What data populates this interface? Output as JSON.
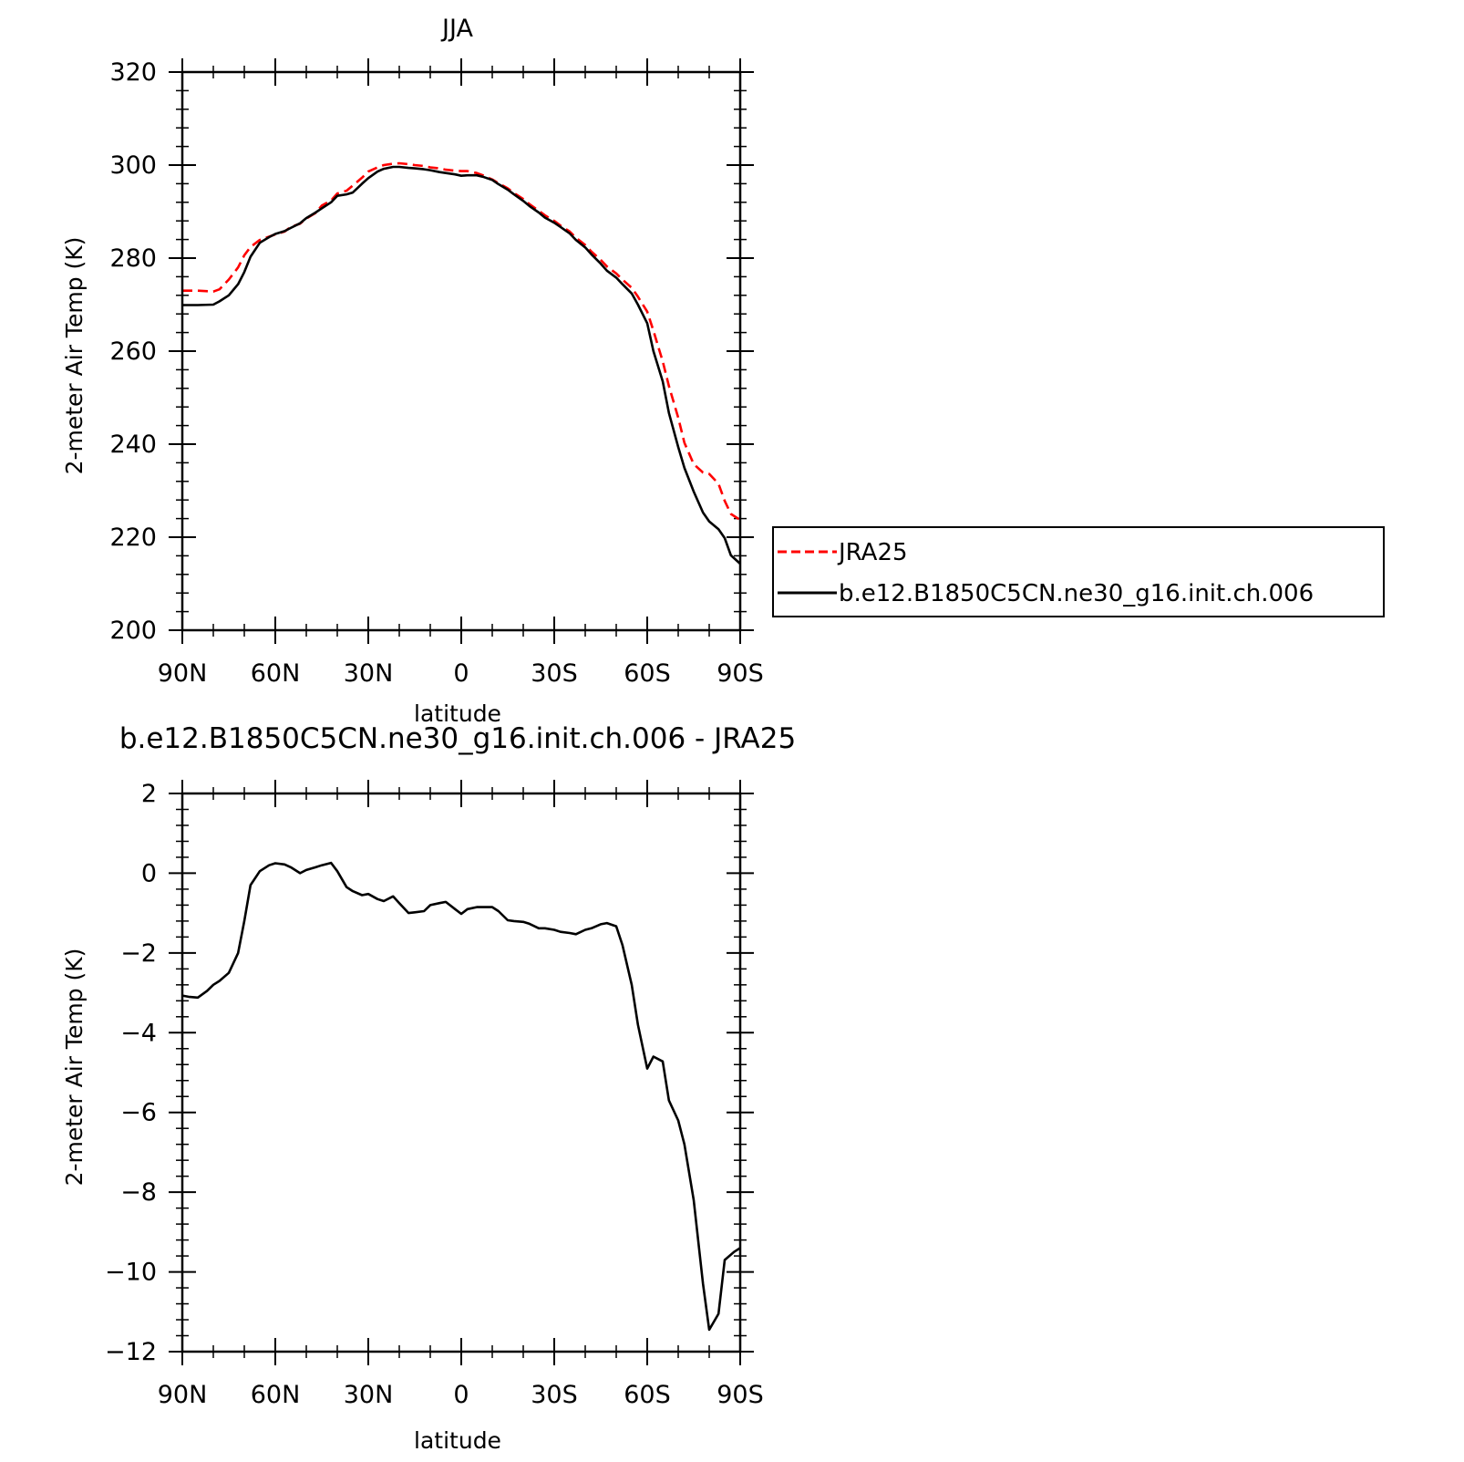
{
  "chart_data": [
    {
      "type": "line",
      "title": "JJA",
      "xlabel": "latitude",
      "ylabel": "2-meter Air Temp (K)",
      "xlim": [
        90,
        -90
      ],
      "ylim": [
        200,
        320
      ],
      "xticks": [
        90,
        60,
        30,
        0,
        -30,
        -60,
        -90
      ],
      "xtick_labels": [
        "90N",
        "60N",
        "30N",
        "0",
        "30S",
        "60S",
        "90S"
      ],
      "yticks": [
        200,
        220,
        240,
        260,
        280,
        300,
        320
      ],
      "ytick_labels": [
        "200",
        "220",
        "240",
        "260",
        "280",
        "300",
        "320"
      ],
      "legend_placement": "right",
      "series": [
        {
          "name": "JRA25",
          "color": "#ff0000",
          "dash": "dashed",
          "x": [
            90,
            85,
            80,
            78,
            75,
            72,
            70,
            68,
            65,
            62,
            60,
            57,
            55,
            52,
            50,
            47,
            45,
            42,
            40,
            37,
            35,
            32,
            30,
            27,
            25,
            22,
            20,
            17,
            15,
            12,
            10,
            7,
            5,
            2,
            0,
            -2,
            -5,
            -7,
            -10,
            -12,
            -15,
            -17,
            -20,
            -22,
            -25,
            -27,
            -30,
            -32,
            -35,
            -37,
            -40,
            -42,
            -45,
            -47,
            -50,
            -52,
            -55,
            -57,
            -60,
            -62,
            -65,
            -67,
            -70,
            -72,
            -75,
            -78,
            -80,
            -83,
            -85,
            -87,
            -90
          ],
          "y": [
            273,
            273,
            272.8,
            273.3,
            275.4,
            278,
            280.6,
            282.4,
            283.9,
            284.6,
            285.1,
            285.7,
            286.7,
            287.4,
            288.5,
            289.7,
            291.3,
            292.4,
            293.9,
            294.5,
            295.6,
            297.3,
            298.6,
            299.5,
            300,
            300.3,
            300.4,
            300.2,
            300,
            299.8,
            299.5,
            299.3,
            299,
            298.8,
            298.7,
            298.7,
            298.3,
            297.8,
            296.9,
            296.1,
            295,
            294,
            292.7,
            291.6,
            290.2,
            289.2,
            288,
            287,
            285.7,
            284.4,
            282.8,
            281.4,
            279.6,
            278.2,
            276.7,
            275.4,
            273.6,
            271.7,
            268.5,
            264.4,
            257.8,
            252.5,
            245.7,
            240.3,
            235.7,
            233.9,
            233.6,
            231.5,
            227.8,
            225,
            223.7
          ]
        },
        {
          "name": "b.e12.B1850C5CN.ne30_g16.init.ch.006",
          "color": "#000000",
          "dash": "solid",
          "x": [
            90,
            85,
            80,
            78,
            75,
            72,
            70,
            68,
            65,
            62,
            60,
            57,
            55,
            52,
            50,
            47,
            45,
            42,
            40,
            37,
            35,
            32,
            30,
            27,
            25,
            22,
            20,
            17,
            15,
            12,
            10,
            7,
            5,
            2,
            0,
            -2,
            -5,
            -7,
            -10,
            -12,
            -15,
            -17,
            -20,
            -22,
            -25,
            -27,
            -30,
            -32,
            -35,
            -37,
            -40,
            -42,
            -45,
            -47,
            -50,
            -52,
            -55,
            -57,
            -60,
            -62,
            -65,
            -67,
            -70,
            -72,
            -75,
            -78,
            -80,
            -83,
            -85,
            -87,
            -90
          ],
          "y": [
            269.9,
            269.9,
            270,
            270.7,
            272,
            274.4,
            277,
            280.3,
            283.3,
            284.5,
            285.2,
            285.8,
            286.5,
            287.5,
            288.6,
            289.8,
            290.7,
            292,
            293.4,
            293.7,
            294.1,
            296,
            297.2,
            298.6,
            299.2,
            299.6,
            299.6,
            299.4,
            299.3,
            299.1,
            298.9,
            298.5,
            298.3,
            298,
            297.7,
            297.8,
            297.8,
            297.5,
            296.8,
            295.9,
            294.7,
            293.7,
            292.3,
            291.2,
            289.8,
            288.7,
            287.6,
            286.7,
            285.3,
            283.9,
            282.3,
            280.8,
            278.8,
            277.3,
            275.8,
            274.4,
            272.4,
            270,
            266,
            260,
            253.5,
            246.7,
            239.4,
            234.9,
            229.8,
            225.3,
            223.4,
            221.7,
            219.8,
            216.1,
            214.3
          ]
        }
      ]
    },
    {
      "type": "line",
      "title": "b.e12.B1850C5CN.ne30_g16.init.ch.006 - JRA25",
      "xlabel": "latitude",
      "ylabel": "2-meter Air Temp (K)",
      "xlim": [
        90,
        -90
      ],
      "ylim": [
        -12,
        2
      ],
      "xticks": [
        90,
        60,
        30,
        0,
        -30,
        -60,
        -90
      ],
      "xtick_labels": [
        "90N",
        "60N",
        "30N",
        "0",
        "30S",
        "60S",
        "90S"
      ],
      "yticks": [
        -12,
        -10,
        -8,
        -6,
        -4,
        -2,
        0,
        2
      ],
      "ytick_labels": [
        "−12",
        "−10",
        "−8",
        "−6",
        "−4",
        "−2",
        "0",
        "2"
      ],
      "series": [
        {
          "color": "#000000",
          "dash": "solid",
          "x": [
            90,
            88,
            85,
            82,
            80,
            78,
            75,
            72,
            70,
            68,
            65,
            62,
            60,
            57,
            55,
            52,
            50,
            47,
            45,
            42,
            40,
            37,
            35,
            32,
            30,
            27,
            25,
            22,
            20,
            17,
            15,
            12,
            10,
            7,
            5,
            2,
            0,
            -2,
            -5,
            -7,
            -10,
            -12,
            -15,
            -17,
            -20,
            -22,
            -25,
            -27,
            -30,
            -32,
            -35,
            -37,
            -40,
            -42,
            -45,
            -47,
            -50,
            -52,
            -55,
            -57,
            -60,
            -62,
            -65,
            -67,
            -70,
            -72,
            -75,
            -78,
            -80,
            -83,
            -85,
            -88,
            -90
          ],
          "y": [
            -3.07,
            -3.1,
            -3.12,
            -2.95,
            -2.8,
            -2.7,
            -2.5,
            -2,
            -1.2,
            -0.3,
            0.05,
            0.2,
            0.25,
            0.22,
            0.15,
            0,
            0.08,
            0.15,
            0.2,
            0.26,
            0.05,
            -0.35,
            -0.45,
            -0.55,
            -0.52,
            -0.65,
            -0.7,
            -0.58,
            -0.75,
            -1,
            -0.98,
            -0.95,
            -0.8,
            -0.75,
            -0.72,
            -0.9,
            -1.02,
            -0.9,
            -0.85,
            -0.85,
            -0.85,
            -0.95,
            -1.18,
            -1.2,
            -1.22,
            -1.27,
            -1.38,
            -1.38,
            -1.42,
            -1.47,
            -1.5,
            -1.53,
            -1.42,
            -1.38,
            -1.28,
            -1.25,
            -1.33,
            -1.8,
            -2.8,
            -3.8,
            -4.9,
            -4.6,
            -4.72,
            -5.7,
            -6.2,
            -6.8,
            -8.2,
            -10.3,
            -11.45,
            -11.05,
            -9.7,
            -9.5,
            -9.4
          ]
        }
      ]
    }
  ]
}
